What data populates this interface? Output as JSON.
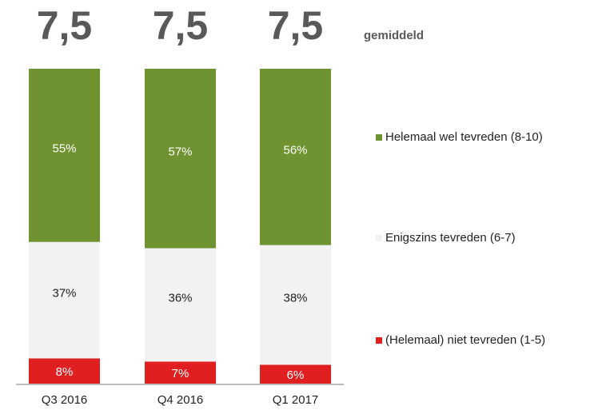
{
  "chart_data": {
    "type": "stacked_bar",
    "categories": [
      "Q3 2016",
      "Q4 2016",
      "Q1 2017"
    ],
    "averages": [
      "7,5",
      "7,5",
      "7,5"
    ],
    "averages_label": "gemiddeld",
    "ylim": [
      0,
      100
    ],
    "series": [
      {
        "name": "(Helemaal) niet tevreden (1-5)",
        "color": "#e02020",
        "values": [
          8,
          7,
          6
        ],
        "value_labels": [
          "8%",
          "7%",
          "6%"
        ]
      },
      {
        "name": "Enigszins tevreden (6-7)",
        "color": "#f2f2f2",
        "values": [
          37,
          36,
          38
        ],
        "value_labels": [
          "37%",
          "36%",
          "38%"
        ]
      },
      {
        "name": "Helemaal wel tevreden (8-10)",
        "color": "#6e9330",
        "values": [
          55,
          57,
          56
        ],
        "value_labels": [
          "55%",
          "57%",
          "56%"
        ]
      }
    ]
  }
}
